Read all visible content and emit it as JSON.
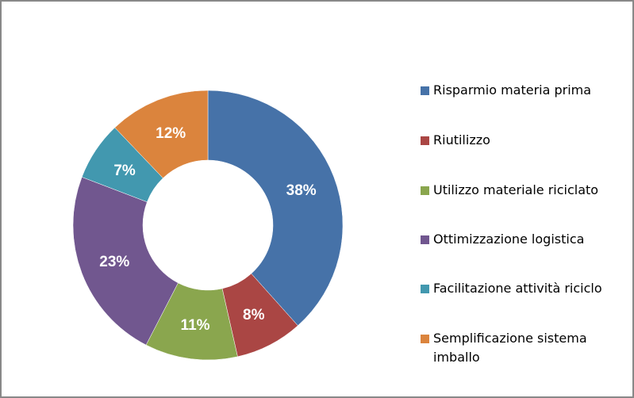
{
  "chart_data": {
    "type": "pie",
    "subtype": "doughnut",
    "title": "",
    "categories": [
      "Risparmio materia prima",
      "Riutilizzo",
      "Utilizzo materiale riciclato",
      "Ottimizzazione logistica",
      "Facilitazione attività riciclo",
      "Semplificazione sistema imballo"
    ],
    "values": [
      38,
      8,
      11,
      23,
      7,
      12
    ],
    "labels": [
      "38%",
      "8%",
      "11%",
      "23%",
      "7%",
      "12%"
    ],
    "colors": [
      "#4672A8",
      "#AA4644",
      "#8AA64E",
      "#71578F",
      "#4298AF",
      "#DB843D"
    ],
    "legend_position": "right"
  },
  "legend": {
    "items": [
      {
        "label": "Risparmio materia prima",
        "color": "#4672A8"
      },
      {
        "label": "Riutilizzo",
        "color": "#AA4644"
      },
      {
        "label": "Utilizzo materiale riciclato",
        "color": "#8AA64E"
      },
      {
        "label": "Ottimizzazione logistica",
        "color": "#71578F"
      },
      {
        "label": "Facilitazione attività riciclo",
        "color": "#4298AF"
      },
      {
        "label": "Semplificazione sistema imballo",
        "color": "#DB843D"
      }
    ]
  }
}
